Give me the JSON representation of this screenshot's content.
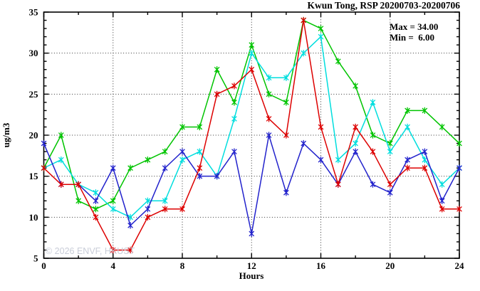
{
  "title": "Kwun Tong, RSP 20200703-20200706",
  "annotation": {
    "max_label": "Max = 34.00",
    "min_label": "Min =  6.00"
  },
  "watermark": "© 2026 ENVF, HKUST",
  "axes": {
    "xlabel": "Hours",
    "ylabel": "ug/m3",
    "x_ticks": [
      0,
      4,
      8,
      12,
      16,
      20,
      24
    ],
    "x_minor_step": 2,
    "y_ticks": [
      5,
      10,
      15,
      20,
      25,
      30,
      35
    ],
    "y_minor_step": 1,
    "grid_x": [
      4,
      8,
      12,
      16,
      20
    ],
    "grid_y": [
      10,
      15,
      20,
      25,
      30
    ]
  },
  "chart_data": {
    "type": "line",
    "title": "Kwun Tong, RSP 20200703-20200706",
    "xlabel": "Hours",
    "ylabel": "ug/m3",
    "xlim": [
      0,
      24
    ],
    "ylim": [
      5,
      35
    ],
    "grid": true,
    "legend": "none",
    "annotations": [
      "Max = 34.00",
      "Min =  6.00"
    ],
    "x": [
      0,
      1,
      2,
      3,
      4,
      5,
      6,
      7,
      8,
      9,
      10,
      11,
      12,
      13,
      14,
      15,
      16,
      17,
      18,
      19,
      20,
      21,
      22,
      23,
      24
    ],
    "series": [
      {
        "name": "green",
        "color": "#00c400",
        "values": [
          16,
          20,
          12,
          11,
          12,
          16,
          17,
          18,
          21,
          21,
          28,
          24,
          31,
          25,
          24,
          34,
          33,
          29,
          26,
          20,
          19,
          23,
          23,
          21,
          19
        ]
      },
      {
        "name": "cyan",
        "color": "#00dede",
        "values": [
          16,
          17,
          14,
          13,
          11,
          10,
          12,
          12,
          17,
          18,
          15,
          22,
          30,
          27,
          27,
          30,
          32,
          17,
          19,
          24,
          18,
          21,
          17,
          14,
          16
        ]
      },
      {
        "name": "blue",
        "color": "#2222cc",
        "values": [
          19,
          14,
          14,
          12,
          16,
          9,
          11,
          16,
          18,
          15,
          15,
          18,
          8,
          20,
          13,
          19,
          17,
          14,
          18,
          14,
          13,
          17,
          18,
          12,
          16
        ]
      },
      {
        "name": "red",
        "color": "#dd0000",
        "values": [
          16,
          14,
          14,
          10,
          6,
          6,
          10,
          11,
          11,
          16,
          25,
          26,
          28,
          22,
          20,
          34,
          21,
          14,
          21,
          18,
          14,
          16,
          16,
          11,
          11
        ]
      }
    ],
    "stats": {
      "max": 34.0,
      "min": 6.0
    }
  }
}
